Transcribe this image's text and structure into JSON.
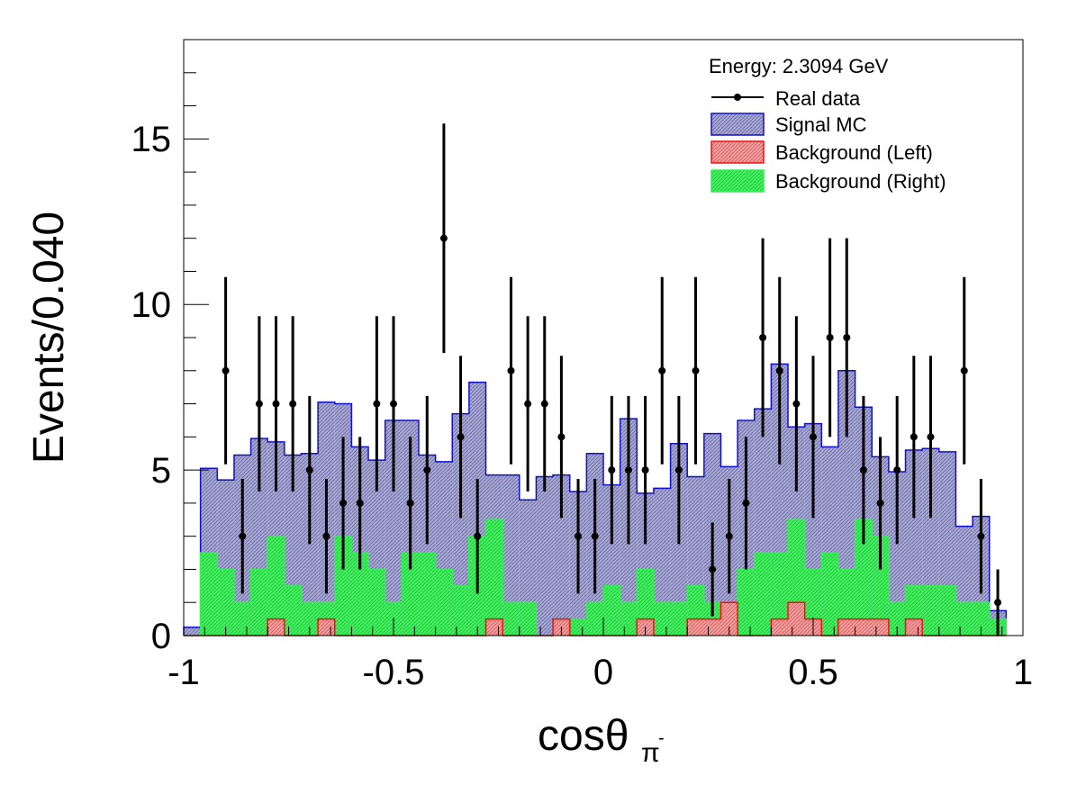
{
  "chart_data": {
    "type": "histogram",
    "title": "Energy: 2.3094 GeV",
    "xlabel": "cosθ",
    "xlabel_sub": "π",
    "xlabel_sup": "-",
    "ylabel": "Events/0.040",
    "xlim": [
      -1,
      1
    ],
    "ylim": [
      0,
      18
    ],
    "bin_width": 0.04,
    "x_ticks": [
      -1,
      -0.5,
      0,
      0.5,
      1
    ],
    "x_tick_labels": [
      "-1",
      "-0.5",
      "0",
      "0.5",
      "1"
    ],
    "y_ticks": [
      0,
      5,
      10,
      15
    ],
    "y_tick_labels": [
      "0",
      "5",
      "10",
      "15"
    ],
    "legend_position": "top-right",
    "series": [
      {
        "name": "Signal MC",
        "kind": "hist",
        "fill": "#9a9ac8",
        "line": "#1010cc",
        "bins_x": [
          -0.98,
          -0.94,
          -0.9,
          -0.86,
          -0.82,
          -0.78,
          -0.74,
          -0.7,
          -0.66,
          -0.62,
          -0.58,
          -0.54,
          -0.5,
          -0.46,
          -0.42,
          -0.38,
          -0.34,
          -0.3,
          -0.26,
          -0.22,
          -0.18,
          -0.14,
          -0.1,
          -0.06,
          -0.02,
          0.02,
          0.06,
          0.1,
          0.14,
          0.18,
          0.22,
          0.26,
          0.3,
          0.34,
          0.38,
          0.42,
          0.46,
          0.5,
          0.54,
          0.58,
          0.62,
          0.66,
          0.7,
          0.74,
          0.78,
          0.82,
          0.86,
          0.9,
          0.94
        ],
        "values": [
          0.25,
          5.05,
          4.7,
          5.45,
          5.95,
          5.85,
          5.45,
          5.5,
          7.05,
          7.0,
          5.7,
          5.3,
          6.5,
          6.5,
          5.45,
          5.25,
          6.7,
          7.65,
          4.85,
          4.85,
          4.1,
          4.8,
          4.85,
          4.35,
          5.5,
          4.55,
          6.55,
          4.3,
          4.45,
          5.8,
          4.8,
          6.1,
          5.1,
          6.5,
          6.85,
          8.2,
          6.3,
          6.4,
          5.7,
          8.0,
          6.9,
          5.4,
          4.95,
          5.6,
          5.65,
          5.55,
          3.3,
          3.6,
          0.75
        ]
      },
      {
        "name": "Background (Right)",
        "kind": "hist",
        "fill": "#33ee55",
        "line": "#33ee55",
        "bins_x": [
          -0.98,
          -0.94,
          -0.9,
          -0.86,
          -0.82,
          -0.78,
          -0.74,
          -0.7,
          -0.66,
          -0.62,
          -0.58,
          -0.54,
          -0.5,
          -0.46,
          -0.42,
          -0.38,
          -0.34,
          -0.3,
          -0.26,
          -0.22,
          -0.18,
          -0.14,
          -0.1,
          -0.06,
          -0.02,
          0.02,
          0.06,
          0.1,
          0.14,
          0.18,
          0.22,
          0.26,
          0.3,
          0.34,
          0.38,
          0.42,
          0.46,
          0.5,
          0.54,
          0.58,
          0.62,
          0.66,
          0.7,
          0.74,
          0.78,
          0.82,
          0.86,
          0.9,
          0.94
        ],
        "values": [
          0,
          2.5,
          2.0,
          1.0,
          2.0,
          3.0,
          1.5,
          1.0,
          1.0,
          3.0,
          2.5,
          2.0,
          1.0,
          2.5,
          2.5,
          2.0,
          1.5,
          3.0,
          3.5,
          1.0,
          1.0,
          0,
          0.5,
          0.5,
          1.0,
          1.5,
          1.0,
          2.0,
          1.0,
          1.0,
          1.5,
          1.0,
          1.0,
          2.0,
          2.5,
          2.5,
          3.5,
          2.0,
          2.5,
          2.0,
          3.5,
          3.0,
          1.0,
          1.5,
          1.5,
          1.5,
          1.0,
          1.0,
          0.5
        ]
      },
      {
        "name": "Background (Left)",
        "kind": "hist",
        "fill": "#f08080",
        "line": "#ee1111",
        "bins_x": [
          -0.98,
          -0.94,
          -0.9,
          -0.86,
          -0.82,
          -0.78,
          -0.74,
          -0.7,
          -0.66,
          -0.62,
          -0.58,
          -0.54,
          -0.5,
          -0.46,
          -0.42,
          -0.38,
          -0.34,
          -0.3,
          -0.26,
          -0.22,
          -0.18,
          -0.14,
          -0.1,
          -0.06,
          -0.02,
          0.02,
          0.06,
          0.1,
          0.14,
          0.18,
          0.22,
          0.26,
          0.3,
          0.34,
          0.38,
          0.42,
          0.46,
          0.5,
          0.54,
          0.58,
          0.62,
          0.66,
          0.7,
          0.74,
          0.78,
          0.82,
          0.86,
          0.9,
          0.94
        ],
        "values": [
          0,
          0,
          0,
          0,
          0,
          0.5,
          0,
          0,
          0.5,
          0,
          0,
          0,
          0,
          0,
          0,
          0,
          0,
          0,
          0.5,
          0,
          0,
          0,
          0.5,
          0,
          0,
          0,
          0,
          0.5,
          0,
          0,
          0.5,
          0.5,
          1.0,
          0,
          0,
          0.5,
          1.0,
          0.5,
          0,
          0.5,
          0.5,
          0.5,
          0,
          0.5,
          0,
          0,
          0,
          0,
          0
        ]
      },
      {
        "name": "Real data",
        "kind": "points",
        "color": "#000000",
        "x": [
          -0.9,
          -0.86,
          -0.82,
          -0.78,
          -0.74,
          -0.7,
          -0.66,
          -0.62,
          -0.58,
          -0.54,
          -0.5,
          -0.46,
          -0.42,
          -0.38,
          -0.34,
          -0.3,
          -0.22,
          -0.18,
          -0.14,
          -0.1,
          -0.06,
          -0.02,
          0.02,
          0.06,
          0.1,
          0.14,
          0.18,
          0.22,
          0.26,
          0.3,
          0.34,
          0.38,
          0.42,
          0.46,
          0.5,
          0.54,
          0.58,
          0.62,
          0.66,
          0.7,
          0.74,
          0.78,
          0.86,
          0.9,
          0.94
        ],
        "y": [
          8,
          3,
          7,
          7,
          7,
          5,
          3,
          4,
          4,
          7,
          7,
          4,
          5,
          12,
          6,
          3,
          8,
          7,
          7,
          6,
          3,
          3,
          5,
          5,
          5,
          8,
          5,
          8,
          2,
          3,
          4,
          9,
          8,
          7,
          6,
          9,
          9,
          5,
          4,
          5,
          6,
          6,
          8,
          3,
          1
        ]
      }
    ]
  }
}
